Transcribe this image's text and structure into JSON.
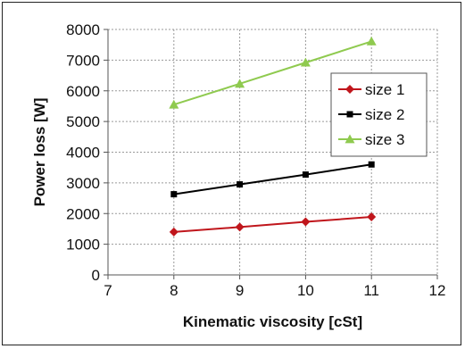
{
  "chart_data": {
    "type": "line",
    "title": "",
    "xlabel": "Kinematic viscosity [cSt]",
    "ylabel": "Power loss [W]",
    "xlim": [
      7,
      12
    ],
    "ylim": [
      0,
      8000
    ],
    "xticks": [
      7,
      8,
      9,
      10,
      11,
      12
    ],
    "yticks": [
      0,
      1000,
      2000,
      3000,
      4000,
      5000,
      6000,
      7000,
      8000
    ],
    "grid": true,
    "legend_position": "right",
    "x": [
      8,
      9,
      10,
      11
    ],
    "series": [
      {
        "name": "size 1",
        "values": [
          1400,
          1560,
          1730,
          1890
        ],
        "color": "#c0161c",
        "marker": "diamond"
      },
      {
        "name": "size 2",
        "values": [
          2630,
          2950,
          3270,
          3600
        ],
        "color": "#000000",
        "marker": "square"
      },
      {
        "name": "size 3",
        "values": [
          5550,
          6230,
          6920,
          7610
        ],
        "color": "#8fca4f",
        "marker": "triangle"
      }
    ]
  }
}
